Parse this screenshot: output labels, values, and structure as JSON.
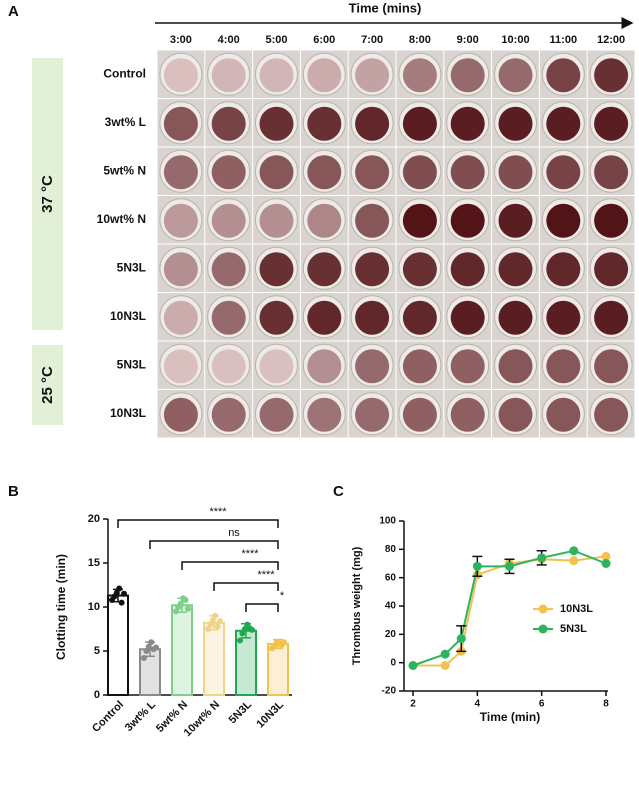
{
  "panel_a": {
    "label": "A",
    "time_title": "Time (mins)",
    "columns": [
      "3:00",
      "4:00",
      "5:00",
      "6:00",
      "7:00",
      "8:00",
      "9:00",
      "10:00",
      "11:00",
      "12:00"
    ],
    "rows": [
      "Control",
      "3wt% L",
      "5wt% N",
      "10wt% N",
      "5N3L",
      "10N3L",
      "5N3L",
      "10N3L"
    ],
    "groups": [
      "37 °C",
      "25 °C"
    ]
  },
  "chart_data": [
    {
      "type": "bar",
      "panel": "B",
      "ylabel": "Clotting time (min)",
      "categories": [
        "Control",
        "3wt% L",
        "5wt% N",
        "10wt% N",
        "5N3L",
        "10N3L"
      ],
      "values": [
        11.3,
        5.2,
        10.2,
        8.2,
        7.3,
        5.8
      ],
      "errors": [
        0.7,
        0.8,
        0.8,
        0.8,
        0.8,
        0.5
      ],
      "points": [
        [
          10.8,
          11.2,
          11.6,
          12.1,
          10.5,
          11.5
        ],
        [
          4.2,
          5.0,
          5.5,
          6.0,
          5.2,
          5.4
        ],
        [
          9.5,
          10.0,
          10.4,
          11.0,
          10.8,
          9.8
        ],
        [
          7.5,
          8.0,
          8.5,
          9.0,
          7.8,
          8.4
        ],
        [
          6.2,
          7.0,
          7.5,
          8.0,
          7.6,
          7.4
        ],
        [
          5.3,
          5.6,
          6.0,
          5.9,
          5.7,
          6.0
        ]
      ],
      "colors": [
        "#111111",
        "#8a8a8a",
        "#7fcf8a",
        "#f2d38a",
        "#1fa84f",
        "#f2c14e"
      ],
      "ylim": [
        0,
        20
      ],
      "yticks": [
        0,
        5,
        10,
        15,
        20
      ],
      "annotations": [
        {
          "from": 0,
          "to": 5,
          "label": "****"
        },
        {
          "from": 1,
          "to": 5,
          "label": "ns"
        },
        {
          "from": 2,
          "to": 5,
          "label": "****"
        },
        {
          "from": 3,
          "to": 5,
          "label": "****"
        },
        {
          "from": 4,
          "to": 5,
          "label": "*"
        }
      ]
    },
    {
      "type": "line",
      "panel": "C",
      "xlabel": "Time (min)",
      "ylabel": "Thrombus weight (mg)",
      "x": [
        2,
        3,
        3.5,
        4,
        5,
        6,
        7,
        8
      ],
      "series": [
        {
          "name": "10N3L",
          "color": "#f2c14e",
          "values": [
            -2,
            -2,
            8,
            62,
            70,
            73,
            72,
            75
          ],
          "errors": [
            0,
            0,
            0,
            0,
            0,
            0,
            0,
            0
          ]
        },
        {
          "name": "5N3L",
          "color": "#2db35d",
          "values": [
            -2,
            6,
            17,
            68,
            68,
            74,
            79,
            70
          ],
          "errors": [
            0,
            0,
            9,
            7,
            5,
            5,
            0,
            0
          ]
        }
      ],
      "xlim": [
        2,
        8
      ],
      "xticks": [
        2,
        4,
        6,
        8
      ],
      "ylim": [
        -20,
        100
      ],
      "yticks": [
        -20,
        0,
        20,
        40,
        60,
        80,
        100
      ],
      "legend": "right"
    }
  ]
}
